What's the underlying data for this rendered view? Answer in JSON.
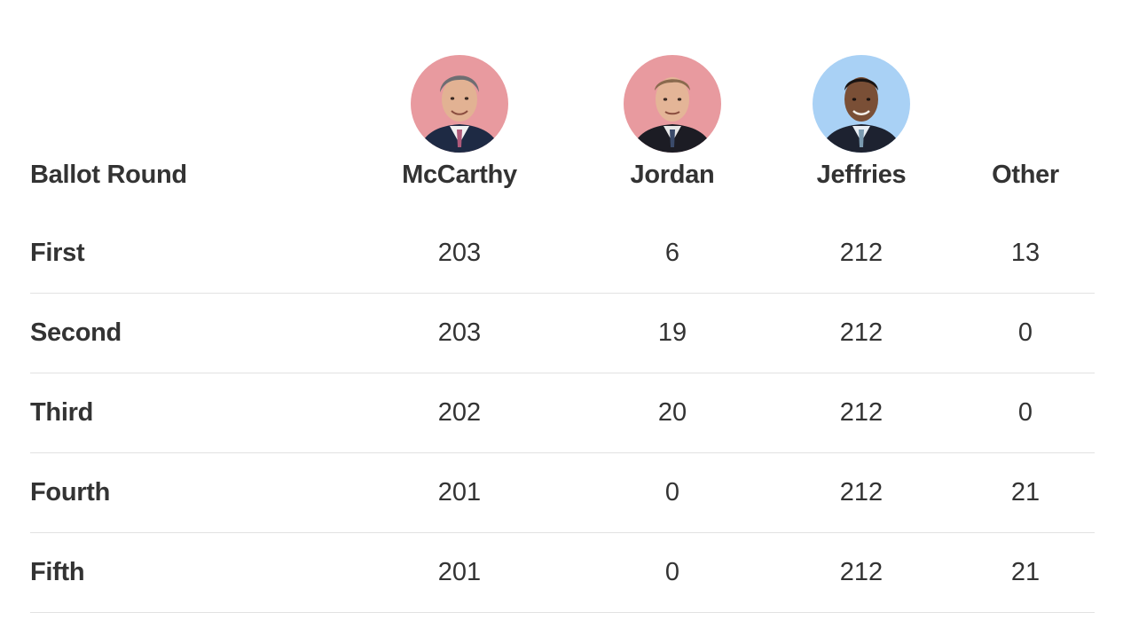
{
  "chart_data": {
    "type": "table",
    "columns": [
      "Ballot Round",
      "McCarthy",
      "Jordan",
      "Jeffries",
      "Other"
    ],
    "rows": [
      {
        "round": "First",
        "values": [
          203,
          6,
          212,
          13
        ]
      },
      {
        "round": "Second",
        "values": [
          203,
          19,
          212,
          0
        ]
      },
      {
        "round": "Third",
        "values": [
          202,
          20,
          212,
          0
        ]
      },
      {
        "round": "Fourth",
        "values": [
          201,
          0,
          212,
          21
        ]
      },
      {
        "round": "Fifth",
        "values": [
          201,
          0,
          212,
          21
        ]
      }
    ]
  },
  "candidates": [
    {
      "name": "McCarthy",
      "party_color": "#e89a9f",
      "avatar_icon": "mccarthy-portrait-icon"
    },
    {
      "name": "Jordan",
      "party_color": "#e89a9f",
      "avatar_icon": "jordan-portrait-icon"
    },
    {
      "name": "Jeffries",
      "party_color": "#a9d1f5",
      "avatar_icon": "jeffries-portrait-icon"
    }
  ]
}
